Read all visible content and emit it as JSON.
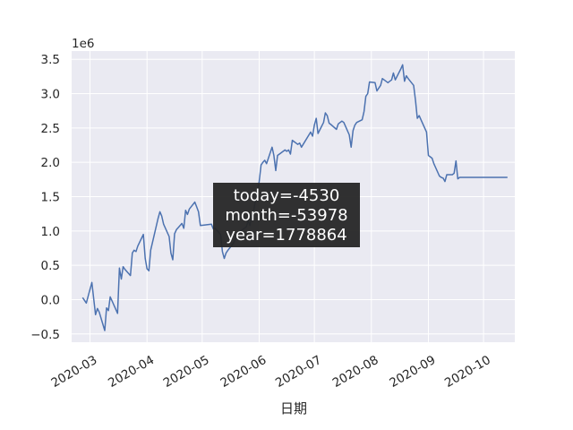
{
  "chart_data": {
    "type": "line",
    "title": "",
    "xlabel": "日期",
    "ylabel": "",
    "y_offset_label": "1e6",
    "grid": true,
    "ylim": [
      -0.62,
      3.62
    ],
    "xlim": [
      "2020-02-20",
      "2020-10-18"
    ],
    "y_ticks": [
      {
        "value": -0.5,
        "label": "−0.5"
      },
      {
        "value": 0.0,
        "label": "0.0"
      },
      {
        "value": 0.5,
        "label": "0.5"
      },
      {
        "value": 1.0,
        "label": "1.0"
      },
      {
        "value": 1.5,
        "label": "1.5"
      },
      {
        "value": 2.0,
        "label": "2.0"
      },
      {
        "value": 2.5,
        "label": "2.5"
      },
      {
        "value": 3.0,
        "label": "3.0"
      },
      {
        "value": 3.5,
        "label": "3.5"
      }
    ],
    "x_ticks": [
      {
        "value": "2020-03-01",
        "label": "2020-03"
      },
      {
        "value": "2020-04-01",
        "label": "2020-04"
      },
      {
        "value": "2020-05-01",
        "label": "2020-05"
      },
      {
        "value": "2020-06-01",
        "label": "2020-06"
      },
      {
        "value": "2020-07-01",
        "label": "2020-07"
      },
      {
        "value": "2020-08-01",
        "label": "2020-08"
      },
      {
        "value": "2020-09-01",
        "label": "2020-09"
      },
      {
        "value": "2020-10-01",
        "label": "2020-10"
      }
    ],
    "series": [
      {
        "color": "#4c72b0",
        "x": [
          "2020-02-26",
          "2020-02-28",
          "2020-03-02",
          "2020-03-04",
          "2020-03-05",
          "2020-03-06",
          "2020-03-09",
          "2020-03-10",
          "2020-03-11",
          "2020-03-12",
          "2020-03-13",
          "2020-03-16",
          "2020-03-17",
          "2020-03-18",
          "2020-03-19",
          "2020-03-20",
          "2020-03-23",
          "2020-03-24",
          "2020-03-25",
          "2020-03-26",
          "2020-03-27",
          "2020-03-30",
          "2020-03-31",
          "2020-04-01",
          "2020-04-02",
          "2020-04-03",
          "2020-04-07",
          "2020-04-08",
          "2020-04-09",
          "2020-04-10",
          "2020-04-13",
          "2020-04-14",
          "2020-04-15",
          "2020-04-16",
          "2020-04-17",
          "2020-04-20",
          "2020-04-21",
          "2020-04-22",
          "2020-04-23",
          "2020-04-24",
          "2020-04-27",
          "2020-04-28",
          "2020-04-29",
          "2020-04-30",
          "2020-05-06",
          "2020-05-07",
          "2020-05-08",
          "2020-05-11",
          "2020-05-12",
          "2020-05-13",
          "2020-05-14",
          "2020-05-15",
          "2020-05-18",
          "2020-05-19",
          "2020-05-20",
          "2020-05-21",
          "2020-05-22",
          "2020-05-25",
          "2020-05-26",
          "2020-05-27",
          "2020-05-28",
          "2020-05-29",
          "2020-06-01",
          "2020-06-02",
          "2020-06-03",
          "2020-06-04",
          "2020-06-05",
          "2020-06-08",
          "2020-06-09",
          "2020-06-10",
          "2020-06-11",
          "2020-06-12",
          "2020-06-15",
          "2020-06-16",
          "2020-06-17",
          "2020-06-18",
          "2020-06-19",
          "2020-06-22",
          "2020-06-23",
          "2020-06-24",
          "2020-06-29",
          "2020-06-30",
          "2020-07-01",
          "2020-07-02",
          "2020-07-03",
          "2020-07-06",
          "2020-07-07",
          "2020-07-08",
          "2020-07-09",
          "2020-07-10",
          "2020-07-13",
          "2020-07-14",
          "2020-07-15",
          "2020-07-16",
          "2020-07-17",
          "2020-07-20",
          "2020-07-21",
          "2020-07-22",
          "2020-07-23",
          "2020-07-24",
          "2020-07-27",
          "2020-07-28",
          "2020-07-29",
          "2020-07-30",
          "2020-07-31",
          "2020-08-03",
          "2020-08-04",
          "2020-08-05",
          "2020-08-06",
          "2020-08-07",
          "2020-08-10",
          "2020-08-11",
          "2020-08-12",
          "2020-08-13",
          "2020-08-14",
          "2020-08-17",
          "2020-08-18",
          "2020-08-19",
          "2020-08-20",
          "2020-08-21",
          "2020-08-24",
          "2020-08-25",
          "2020-08-26",
          "2020-08-27",
          "2020-08-28",
          "2020-08-31",
          "2020-09-01",
          "2020-09-02",
          "2020-09-03",
          "2020-09-04",
          "2020-09-07",
          "2020-09-08",
          "2020-09-09",
          "2020-09-10",
          "2020-09-11",
          "2020-09-14",
          "2020-09-15",
          "2020-09-16",
          "2020-09-17",
          "2020-09-18",
          "2020-09-21",
          "2020-09-22",
          "2020-09-23",
          "2020-09-24",
          "2020-09-25",
          "2020-09-28",
          "2020-09-29",
          "2020-09-30",
          "2020-10-09",
          "2020-10-12",
          "2020-10-13",
          "2020-10-14"
        ],
        "y": [
          0.03,
          -0.05,
          0.25,
          -0.22,
          -0.13,
          -0.18,
          -0.45,
          -0.12,
          -0.16,
          0.04,
          -0.02,
          -0.2,
          0.46,
          0.3,
          0.48,
          0.44,
          0.35,
          0.68,
          0.72,
          0.7,
          0.78,
          0.95,
          0.6,
          0.45,
          0.42,
          0.72,
          1.18,
          1.28,
          1.22,
          1.1,
          0.92,
          0.68,
          0.58,
          0.96,
          1.02,
          1.11,
          1.04,
          1.3,
          1.24,
          1.32,
          1.42,
          1.35,
          1.28,
          1.08,
          1.1,
          1.03,
          1.04,
          0.95,
          0.7,
          0.6,
          0.68,
          0.72,
          0.82,
          0.88,
          0.92,
          0.96,
          1.0,
          1.06,
          1.15,
          1.08,
          1.22,
          1.3,
          1.72,
          1.96,
          2.0,
          2.03,
          1.98,
          2.22,
          2.1,
          1.88,
          2.1,
          2.12,
          2.18,
          2.16,
          2.18,
          2.12,
          2.32,
          2.26,
          2.28,
          2.22,
          2.44,
          2.38,
          2.54,
          2.64,
          2.42,
          2.58,
          2.72,
          2.68,
          2.57,
          2.55,
          2.48,
          2.56,
          2.58,
          2.6,
          2.58,
          2.4,
          2.22,
          2.46,
          2.54,
          2.58,
          2.62,
          2.74,
          2.96,
          3.0,
          3.17,
          3.16,
          3.04,
          3.08,
          3.12,
          3.22,
          3.16,
          3.18,
          3.2,
          3.3,
          3.2,
          3.36,
          3.42,
          3.18,
          3.26,
          3.22,
          3.12,
          2.9,
          2.64,
          2.68,
          2.62,
          2.44,
          2.1,
          2.08,
          2.06,
          1.98,
          1.8,
          1.78,
          1.77,
          1.72,
          1.82,
          1.82,
          1.84,
          2.02,
          1.76,
          1.78,
          1.78,
          1.78,
          1.78,
          1.78,
          1.78,
          1.78,
          1.78,
          1.78,
          1.78,
          1.78,
          1.78,
          1.78
        ]
      }
    ]
  },
  "info_box": {
    "lines": [
      "today=-4530",
      "month=-53978",
      "year=1778864"
    ]
  }
}
